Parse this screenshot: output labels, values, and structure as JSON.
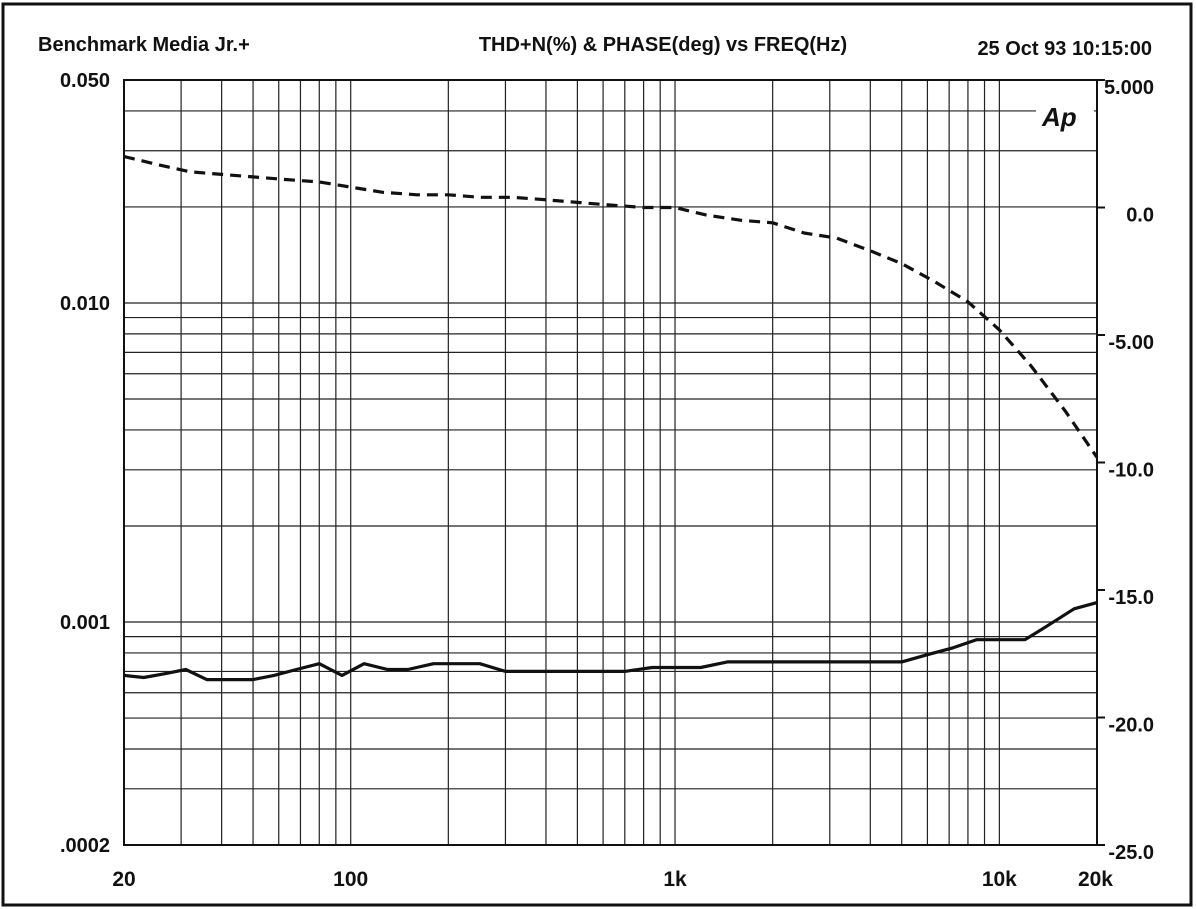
{
  "header": {
    "left": "Benchmark Media  Jr.+",
    "center": "THD+N(%)  &  PHASE(deg)   vs   FREQ(Hz)",
    "right": "25 Oct 93 10:15:00"
  },
  "watermark": "Ap",
  "chart_data": {
    "type": "line",
    "title": "THD+N(%)  &  PHASE(deg)   vs   FREQ(Hz)",
    "xlabel": "",
    "ylabel": "",
    "x_scale": "log",
    "y_left_scale": "log",
    "y_right_scale": "linear",
    "xlim": [
      20,
      20000
    ],
    "ylim_left": [
      0.0002,
      0.05
    ],
    "ylim_right": [
      -25.0,
      5.0
    ],
    "grid": true,
    "legend": "none",
    "x_ticks": [
      {
        "value": 20,
        "label": "20"
      },
      {
        "value": 100,
        "label": "100"
      },
      {
        "value": 1000,
        "label": "1k"
      },
      {
        "value": 10000,
        "label": "10k"
      },
      {
        "value": 20000,
        "label": "20k"
      }
    ],
    "y_left_ticks": [
      {
        "value": 0.05,
        "label": "0.050"
      },
      {
        "value": 0.01,
        "label": "0.010"
      },
      {
        "value": 0.001,
        "label": "0.001"
      },
      {
        "value": 0.0002,
        "label": ".0002"
      }
    ],
    "y_right_ticks": [
      {
        "value": 5.0,
        "label": "5.000"
      },
      {
        "value": 0.0,
        "label": "0.0"
      },
      {
        "value": -5.0,
        "label": "-5.00"
      },
      {
        "value": -10.0,
        "label": "-10.0"
      },
      {
        "value": -15.0,
        "label": "-15.0"
      },
      {
        "value": -20.0,
        "label": "-20.0"
      },
      {
        "value": -25.0,
        "label": "-25.0"
      }
    ],
    "series": [
      {
        "axis": "left",
        "style": "solid",
        "x": [
          20,
          23,
          27,
          31,
          36,
          42,
          50,
          58,
          68,
          80,
          94,
          110,
          130,
          150,
          180,
          210,
          250,
          300,
          350,
          420,
          500,
          600,
          700,
          850,
          1000,
          1200,
          1450,
          1700,
          2000,
          2400,
          2900,
          3500,
          4200,
          5000,
          6000,
          7200,
          8500,
          10000,
          12000,
          14000,
          17000,
          20000
        ],
        "y": [
          0.00068,
          0.00067,
          0.00069,
          0.00071,
          0.00066,
          0.00066,
          0.00066,
          0.00068,
          0.00071,
          0.00074,
          0.00068,
          0.00074,
          0.00071,
          0.00071,
          0.00074,
          0.00074,
          0.00074,
          0.0007,
          0.0007,
          0.0007,
          0.0007,
          0.0007,
          0.0007,
          0.00072,
          0.00072,
          0.00072,
          0.00075,
          0.00075,
          0.00075,
          0.00075,
          0.00075,
          0.00075,
          0.00075,
          0.00075,
          0.00079,
          0.00083,
          0.00088,
          0.00088,
          0.00088,
          0.00097,
          0.0011,
          0.00115
        ]
      },
      {
        "axis": "right",
        "style": "dashed",
        "x": [
          20,
          25,
          32,
          40,
          50,
          63,
          80,
          100,
          125,
          160,
          200,
          250,
          315,
          400,
          500,
          630,
          800,
          1000,
          1250,
          1600,
          2000,
          2500,
          3150,
          4000,
          5000,
          6300,
          8000,
          10000,
          12500,
          16000,
          20000
        ],
        "y": [
          2.0,
          1.7,
          1.4,
          1.3,
          1.2,
          1.1,
          1.0,
          0.8,
          0.6,
          0.5,
          0.5,
          0.4,
          0.4,
          0.3,
          0.2,
          0.1,
          0.0,
          0.0,
          -0.3,
          -0.5,
          -0.6,
          -1.0,
          -1.2,
          -1.7,
          -2.2,
          -2.9,
          -3.7,
          -4.8,
          -6.2,
          -8.0,
          -9.8
        ]
      }
    ]
  }
}
